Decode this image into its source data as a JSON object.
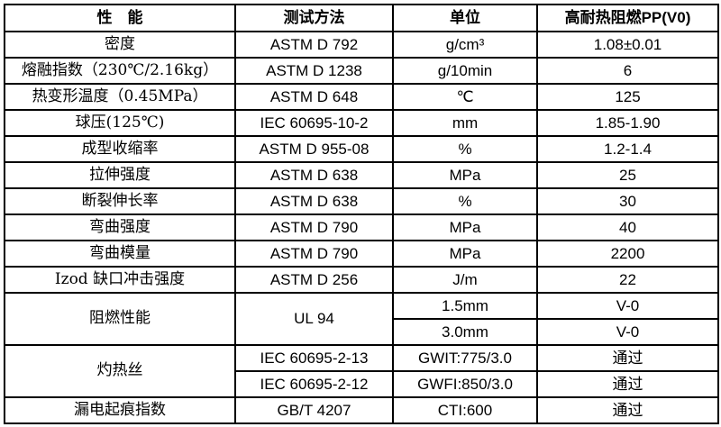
{
  "colors": {
    "border": "#000000",
    "text": "#000000",
    "background": "#ffffff"
  },
  "table": {
    "header": {
      "property": "性　能",
      "method": "测试方法",
      "unit": "单位",
      "grade": "高耐热阻燃PP(V0)"
    },
    "rows": [
      {
        "property": "密度",
        "method": "ASTM D 792",
        "unit": "g/cm³",
        "value": "1.08±0.01"
      },
      {
        "property": "熔融指数（230℃/2.16kg）",
        "method": "ASTM D 1238",
        "unit": "g/10min",
        "value": "6"
      },
      {
        "property": "热变形温度（0.45MPa）",
        "method": "ASTM D 648",
        "unit": "℃",
        "value": "125"
      },
      {
        "property": "球压(125℃)",
        "method": "IEC 60695-10-2",
        "unit": "mm",
        "value": "1.85-1.90"
      },
      {
        "property": "成型收缩率",
        "method": "ASTM D 955-08",
        "unit": "%",
        "value": "1.2-1.4"
      },
      {
        "property": "拉伸强度",
        "method": "ASTM D 638",
        "unit": "MPa",
        "value": "25"
      },
      {
        "property": "断裂伸长率",
        "method": "ASTM D 638",
        "unit": "%",
        "value": "30"
      },
      {
        "property": "弯曲强度",
        "method": "ASTM D 790",
        "unit": "MPa",
        "value": "40"
      },
      {
        "property": "弯曲模量",
        "method": "ASTM D 790",
        "unit": "MPa",
        "value": "2200"
      },
      {
        "property": "Izod 缺口冲击强度",
        "method": "ASTM D 256",
        "unit": "J/m",
        "value": "22"
      }
    ],
    "flame_rating": {
      "property": "阻燃性能",
      "method": "UL 94",
      "subrows": [
        {
          "unit": "1.5mm",
          "value": "V-0"
        },
        {
          "unit": "3.0mm",
          "value": "V-0"
        }
      ]
    },
    "glow_wire": {
      "property": "灼热丝",
      "subrows": [
        {
          "method": "IEC 60695-2-13",
          "unit": "GWIT:775/3.0",
          "value": "通过"
        },
        {
          "method": "IEC 60695-2-12",
          "unit": "GWFI:850/3.0",
          "value": "通过"
        }
      ]
    },
    "tracking_index": {
      "property": "漏电起痕指数",
      "method": "GB/T 4207",
      "unit": "CTI:600",
      "value": "通过"
    }
  }
}
